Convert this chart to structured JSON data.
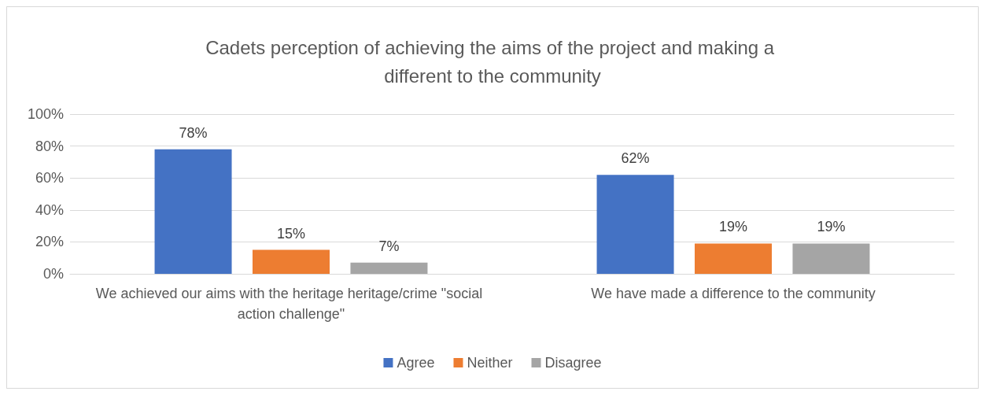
{
  "chart_data": {
    "type": "bar",
    "title": "Cadets perception of achieving the aims of the project and making a different to the community",
    "categories": [
      "We achieved our aims with the heritage heritage/crime \"social action challenge\"",
      "We have made a difference to the community"
    ],
    "series": [
      {
        "name": "Agree",
        "color": "#4472c4",
        "values": [
          78,
          62
        ],
        "value_labels": [
          "78%",
          "62%"
        ]
      },
      {
        "name": "Neither",
        "color": "#ed7d31",
        "values": [
          15,
          19
        ],
        "value_labels": [
          "15%",
          "19%"
        ]
      },
      {
        "name": "Disagree",
        "color": "#a5a5a5",
        "values": [
          7,
          19
        ],
        "value_labels": [
          "7%",
          "19%"
        ]
      }
    ],
    "ylim": [
      0,
      100
    ],
    "yticks": [
      {
        "value": 0,
        "label": "0%"
      },
      {
        "value": 20,
        "label": "20%"
      },
      {
        "value": 40,
        "label": "40%"
      },
      {
        "value": 60,
        "label": "60%"
      },
      {
        "value": 80,
        "label": "80%"
      },
      {
        "value": 100,
        "label": "100%"
      }
    ],
    "grid": "y",
    "legend": "bottom"
  }
}
